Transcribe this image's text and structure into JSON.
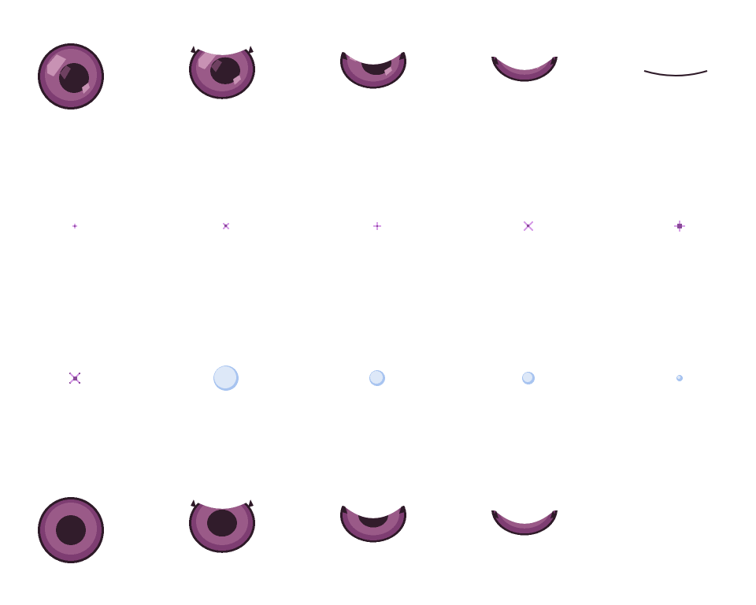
{
  "colors": {
    "outline": "#2e1a28",
    "iris_outer": "#7e3d72",
    "iris_inner": "#9a5a88",
    "pupil": "#311c2b",
    "highlight": "#c892b4",
    "highlight_dark": "#6e4060",
    "sparkle": "#8a4a9a",
    "sparkle_light": "#d8a0e8",
    "bubble_fill": "#dde8f8",
    "bubble_edge": "#a8c4f0"
  },
  "sprites": {
    "row1": [
      "eye-open-highlight",
      "eye-blink-1",
      "eye-blink-2",
      "eye-blink-3",
      "eye-closed-line"
    ],
    "row2": [
      "sparkle-plus-small",
      "sparkle-x-small",
      "sparkle-plus",
      "sparkle-x",
      "sparkle-star"
    ],
    "row3": [
      "sparkle-x-dark",
      "bubble-large",
      "bubble-medium",
      "bubble-small",
      "bubble-tiny"
    ],
    "row4": [
      "eye-open-plain",
      "eye-blink-plain-1",
      "eye-blink-plain-2",
      "eye-blink-plain-3"
    ]
  }
}
